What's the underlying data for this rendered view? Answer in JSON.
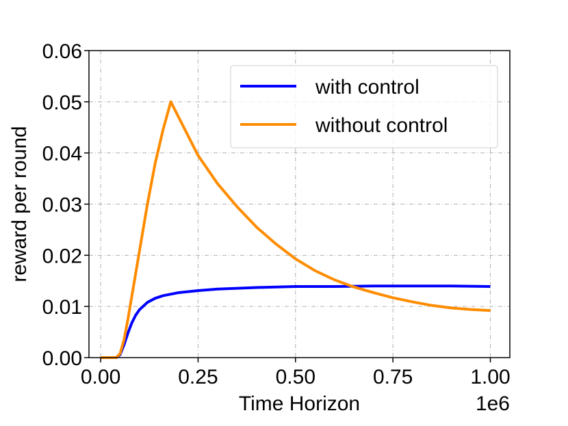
{
  "chart_data": {
    "type": "line",
    "xlabel": "Time Horizon",
    "ylabel": "reward per round",
    "x_offset_text": "1e6",
    "xlim": [
      -0.03,
      1.05
    ],
    "ylim": [
      0.0,
      0.06
    ],
    "xticks": [
      0.0,
      0.25,
      0.5,
      0.75,
      1.0
    ],
    "xtick_labels": [
      "0.00",
      "0.25",
      "0.50",
      "0.75",
      "1.00"
    ],
    "yticks": [
      0.0,
      0.01,
      0.02,
      0.03,
      0.04,
      0.05,
      0.06
    ],
    "ytick_labels": [
      "0.00",
      "0.01",
      "0.02",
      "0.03",
      "0.04",
      "0.05",
      "0.06"
    ],
    "grid": true,
    "legend_position": "top-right",
    "series": [
      {
        "name": "with control",
        "color": "#0000ff",
        "x": [
          0.0,
          0.04,
          0.05,
          0.06,
          0.07,
          0.08,
          0.09,
          0.1,
          0.12,
          0.14,
          0.16,
          0.18,
          0.2,
          0.25,
          0.3,
          0.4,
          0.5,
          0.6,
          0.7,
          0.8,
          0.9,
          1.0
        ],
        "y": [
          0.0,
          0.0,
          0.0006,
          0.0025,
          0.0048,
          0.0068,
          0.0083,
          0.0094,
          0.0108,
          0.0116,
          0.0121,
          0.0124,
          0.0127,
          0.0131,
          0.0134,
          0.0137,
          0.0139,
          0.0139,
          0.014,
          0.014,
          0.014,
          0.0139
        ]
      },
      {
        "name": "without control",
        "color": "#ff8c00",
        "x": [
          0.0,
          0.04,
          0.05,
          0.06,
          0.07,
          0.08,
          0.1,
          0.12,
          0.14,
          0.16,
          0.18,
          0.2,
          0.25,
          0.3,
          0.35,
          0.4,
          0.45,
          0.5,
          0.55,
          0.6,
          0.65,
          0.7,
          0.75,
          0.8,
          0.85,
          0.9,
          0.95,
          1.0
        ],
        "y": [
          0.0,
          0.0,
          0.0008,
          0.0035,
          0.0075,
          0.012,
          0.021,
          0.03,
          0.038,
          0.0445,
          0.05,
          0.047,
          0.0395,
          0.034,
          0.0295,
          0.0255,
          0.0222,
          0.0193,
          0.017,
          0.0152,
          0.0138,
          0.0127,
          0.0117,
          0.0109,
          0.0102,
          0.0097,
          0.0094,
          0.0092
        ]
      }
    ]
  }
}
